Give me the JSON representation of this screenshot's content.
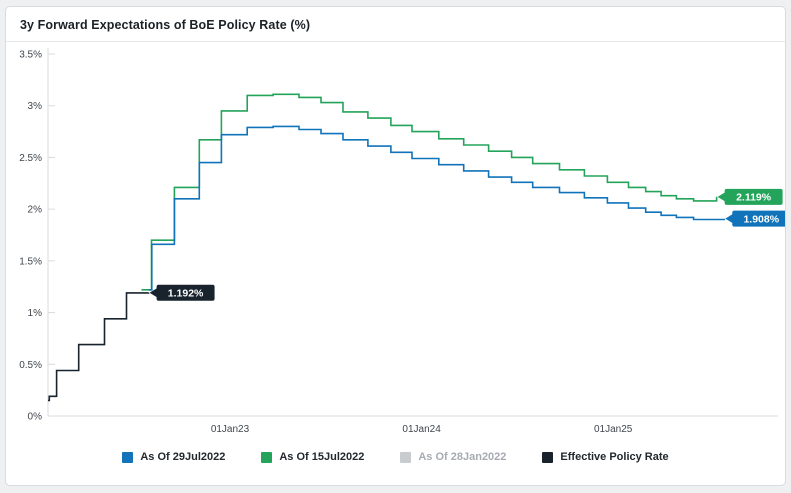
{
  "header": {
    "title": "3y Forward Expectations of BoE Policy Rate (%)"
  },
  "colors": {
    "blue": "#1173ba",
    "green": "#24a45a",
    "gray": "#c9cccf",
    "dark": "#18232e",
    "axis_line": "#d8dbde",
    "tick_text": "#40464d",
    "muted_text": "#a7abb1",
    "flag_text": "#ffffff"
  },
  "chart_data": {
    "type": "line",
    "title": "3y Forward Expectations of BoE Policy Rate (%)",
    "subtitle": "",
    "grid": false,
    "legend_position": "bottom",
    "x_axis": {
      "range": [
        2022.05,
        2025.85
      ],
      "ticks": [
        2023.0,
        2024.0,
        2025.0
      ],
      "tick_labels": [
        "01Jan23",
        "01Jan24",
        "01Jan25"
      ]
    },
    "y_axis": {
      "range": [
        0,
        3.5
      ],
      "ticks": [
        0,
        0.5,
        1,
        1.5,
        2,
        2.5,
        3,
        3.5
      ],
      "tick_labels": [
        "0%",
        "0.5%",
        "1%",
        "1.5%",
        "2%",
        "2.5%",
        "3%",
        "3.5%"
      ]
    },
    "series": [
      {
        "name": "As Of 29Jul2022",
        "color_key": "blue",
        "visible": true,
        "end_label": "1.908%",
        "points": [
          [
            2022.575,
            1.22
          ],
          [
            2022.592,
            1.66
          ],
          [
            2022.71,
            2.1
          ],
          [
            2022.84,
            2.45
          ],
          [
            2022.955,
            2.72
          ],
          [
            2023.09,
            2.79
          ],
          [
            2023.225,
            2.8
          ],
          [
            2023.36,
            2.77
          ],
          [
            2023.475,
            2.73
          ],
          [
            2023.59,
            2.67
          ],
          [
            2023.72,
            2.61
          ],
          [
            2023.84,
            2.55
          ],
          [
            2023.95,
            2.49
          ],
          [
            2024.09,
            2.43
          ],
          [
            2024.22,
            2.37
          ],
          [
            2024.35,
            2.31
          ],
          [
            2024.47,
            2.26
          ],
          [
            2024.58,
            2.21
          ],
          [
            2024.72,
            2.16
          ],
          [
            2024.85,
            2.11
          ],
          [
            2024.97,
            2.06
          ],
          [
            2025.08,
            2.01
          ],
          [
            2025.17,
            1.97
          ],
          [
            2025.25,
            1.94
          ],
          [
            2025.33,
            1.92
          ],
          [
            2025.42,
            1.9
          ],
          [
            2025.58,
            1.908
          ]
        ]
      },
      {
        "name": "As Of 15Jul2022",
        "color_key": "green",
        "visible": true,
        "end_label": "2.119%",
        "points": [
          [
            2022.538,
            1.22
          ],
          [
            2022.59,
            1.7
          ],
          [
            2022.71,
            2.21
          ],
          [
            2022.84,
            2.67
          ],
          [
            2022.955,
            2.95
          ],
          [
            2023.09,
            3.1
          ],
          [
            2023.225,
            3.11
          ],
          [
            2023.36,
            3.08
          ],
          [
            2023.475,
            3.03
          ],
          [
            2023.59,
            2.94
          ],
          [
            2023.72,
            2.88
          ],
          [
            2023.84,
            2.81
          ],
          [
            2023.95,
            2.75
          ],
          [
            2024.09,
            2.68
          ],
          [
            2024.22,
            2.62
          ],
          [
            2024.35,
            2.56
          ],
          [
            2024.47,
            2.5
          ],
          [
            2024.58,
            2.44
          ],
          [
            2024.72,
            2.38
          ],
          [
            2024.85,
            2.32
          ],
          [
            2024.97,
            2.26
          ],
          [
            2025.08,
            2.21
          ],
          [
            2025.17,
            2.17
          ],
          [
            2025.25,
            2.13
          ],
          [
            2025.33,
            2.1
          ],
          [
            2025.42,
            2.08
          ],
          [
            2025.54,
            2.119
          ]
        ]
      },
      {
        "name": "As Of 28Jan2022",
        "color_key": "gray",
        "visible": false,
        "end_label": null,
        "points": []
      },
      {
        "name": "Effective Policy Rate",
        "color_key": "dark",
        "visible": true,
        "end_label": "1.192%",
        "points": [
          [
            2022.05,
            0.15
          ],
          [
            2022.057,
            0.19
          ],
          [
            2022.095,
            0.44
          ],
          [
            2022.21,
            0.69
          ],
          [
            2022.345,
            0.94
          ],
          [
            2022.46,
            1.19
          ],
          [
            2022.575,
            1.192
          ]
        ]
      }
    ]
  }
}
